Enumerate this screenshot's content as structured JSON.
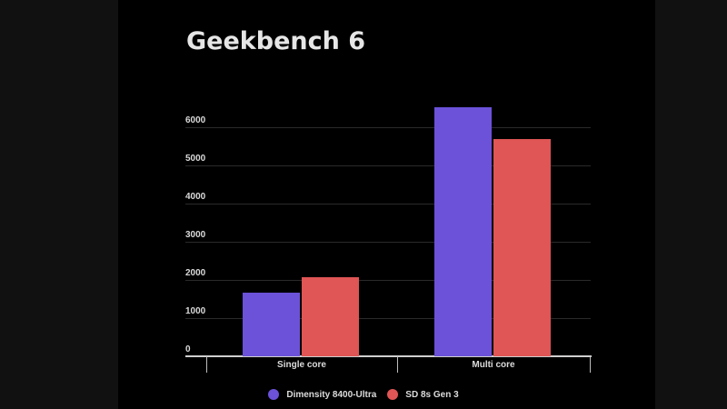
{
  "chart_data": {
    "type": "bar",
    "title": "Geekbench 6",
    "categories": [
      "Single core",
      "Multi core"
    ],
    "series": [
      {
        "name": "Dimensity 8400-Ultra",
        "color": "#6b52d8",
        "values": [
          1660,
          6520
        ]
      },
      {
        "name": "SD 8s Gen 3",
        "color": "#e05555",
        "values": [
          2070,
          5690
        ]
      }
    ],
    "xlabel": "",
    "ylabel": "",
    "ylim": [
      0,
      6000
    ],
    "yticks": [
      "0",
      "1000",
      "2000",
      "3000",
      "4000",
      "5000",
      "6000"
    ],
    "grid": true,
    "legend_position": "bottom"
  },
  "colors": {
    "background_outer": "#111111",
    "background_panel": "#000000",
    "title_text": "#e6e6e6"
  }
}
